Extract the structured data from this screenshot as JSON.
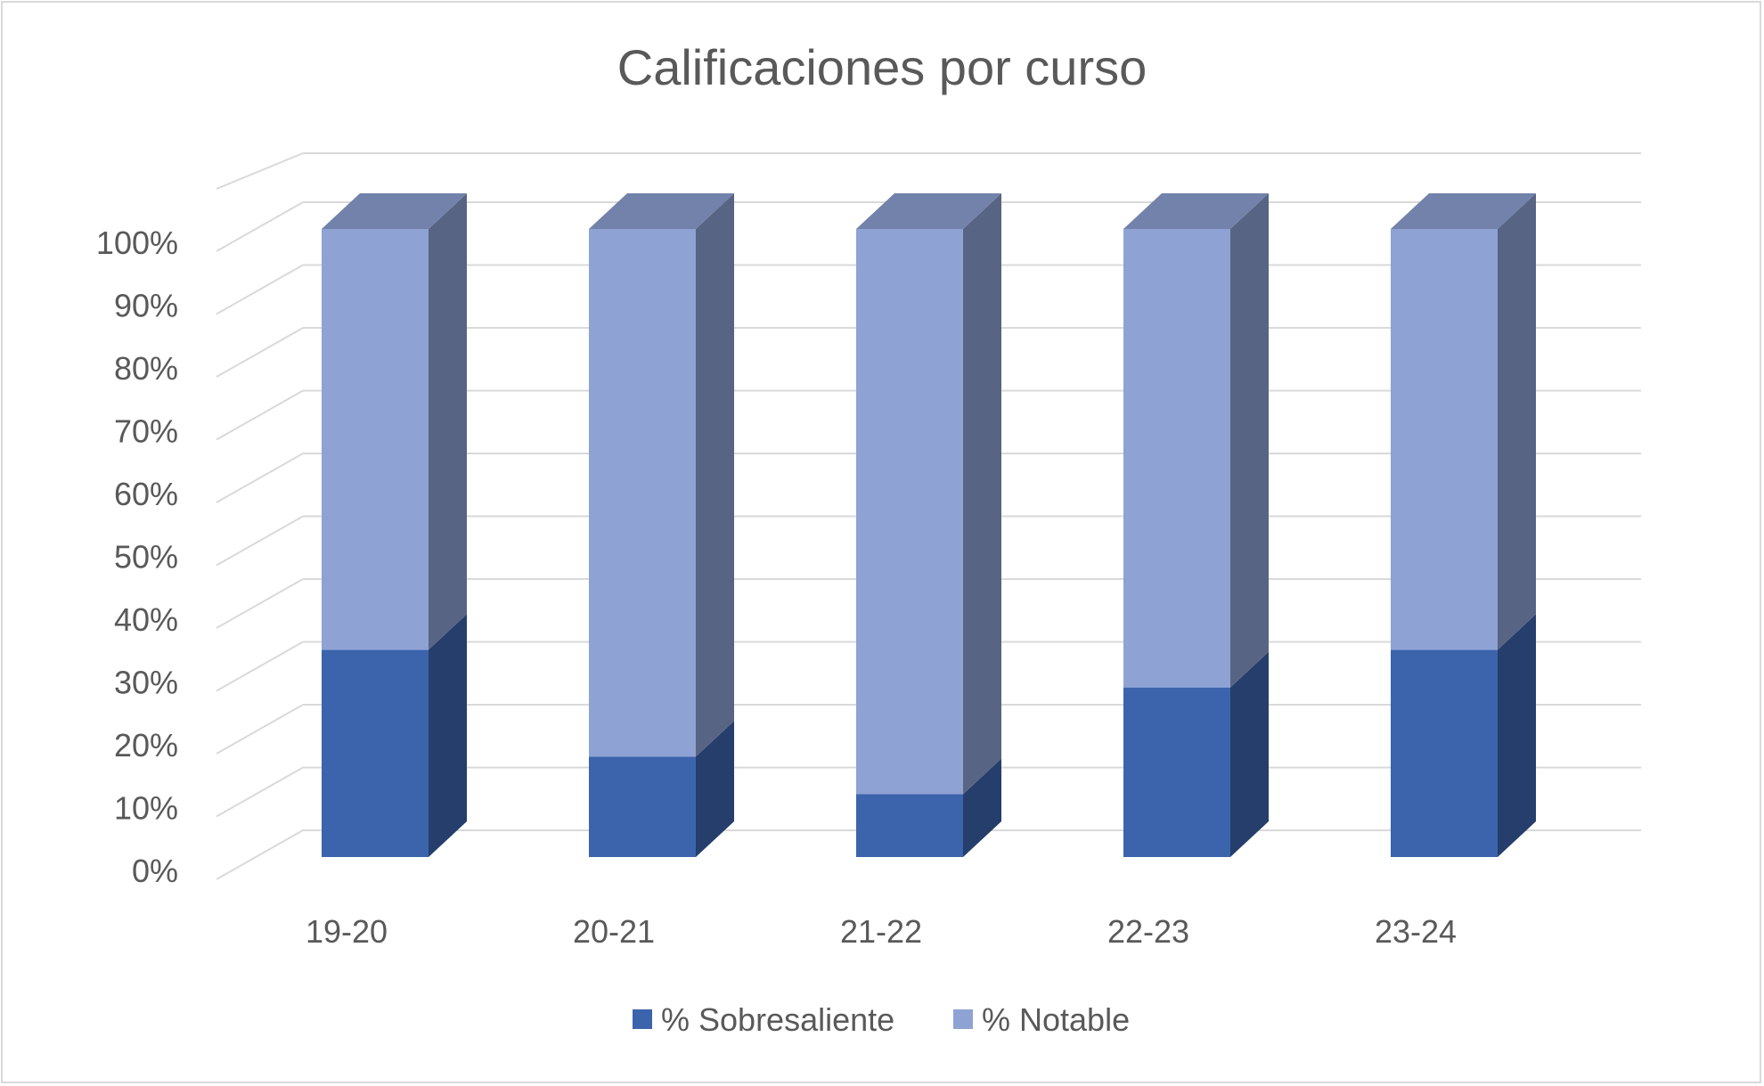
{
  "chart_data": {
    "type": "bar",
    "stacked": true,
    "three_d": true,
    "title": "Calificaciones por curso",
    "xlabel": "",
    "ylabel": "",
    "categories": [
      "19-20",
      "20-21",
      "21-22",
      "22-23",
      "23-24"
    ],
    "series": [
      {
        "name": "% Sobresaliente",
        "values": [
          33,
          16,
          10,
          27,
          33
        ],
        "color": "#3c64ac"
      },
      {
        "name": "% Notable",
        "values": [
          67,
          84,
          90,
          73,
          67
        ],
        "color": "#8ea2d4"
      }
    ],
    "ylim": [
      0,
      100
    ],
    "yticks": [
      "0%",
      "10%",
      "20%",
      "30%",
      "40%",
      "50%",
      "60%",
      "70%",
      "80%",
      "90%",
      "100%"
    ],
    "grid": true,
    "legend_position": "bottom"
  }
}
